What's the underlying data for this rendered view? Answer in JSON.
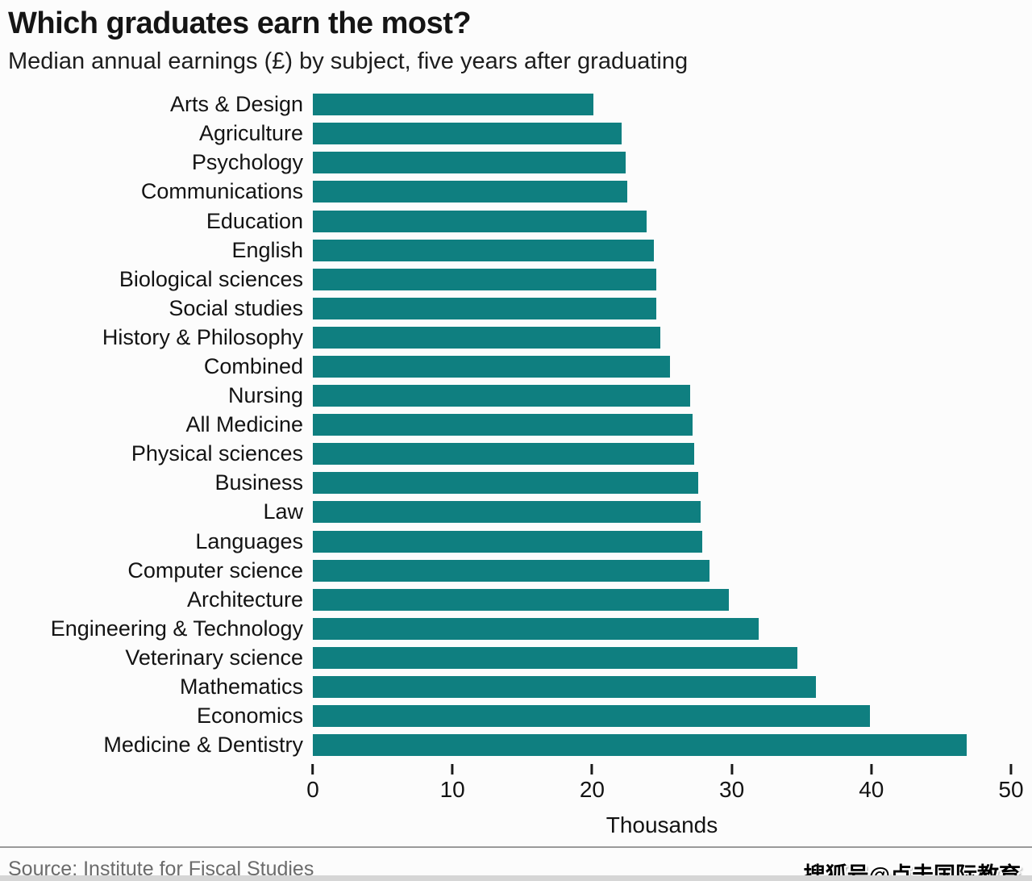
{
  "header": {
    "title": "Which graduates earn the most?",
    "subtitle": "Median annual earnings (£) by subject, five years after graduating"
  },
  "chart_data": {
    "type": "bar",
    "orientation": "horizontal",
    "title": "Which graduates earn the most?",
    "subtitle": "Median annual earnings (£) by subject, five years after graduating",
    "categories": [
      "Arts & Design",
      "Agriculture",
      "Psychology",
      "Communications",
      "Education",
      "English",
      "Biological sciences",
      "Social studies",
      "History & Philosophy",
      "Combined",
      "Nursing",
      "All Medicine",
      "Physical sciences",
      "Business",
      "Law",
      "Languages",
      "Computer science",
      "Architecture",
      "Engineering & Technology",
      "Veterinary science",
      "Mathematics",
      "Economics",
      "Medicine & Dentistry"
    ],
    "values": [
      20.1,
      22.1,
      22.4,
      22.5,
      23.9,
      24.4,
      24.6,
      24.6,
      24.9,
      25.6,
      27.0,
      27.2,
      27.3,
      27.6,
      27.8,
      27.9,
      28.4,
      29.8,
      31.9,
      34.7,
      36.0,
      39.9,
      46.8
    ],
    "value_unit": "thousands of pounds",
    "xlabel": "Thousands",
    "xlim": [
      0,
      50
    ],
    "xticks": [
      0,
      10,
      20,
      30,
      40,
      50
    ],
    "grid": false,
    "legend": "none",
    "bar_color": "#0f7f80"
  },
  "footer": {
    "source": "Source: Institute for Fiscal Studies",
    "watermark": "搜狐号@点击国际教育"
  }
}
